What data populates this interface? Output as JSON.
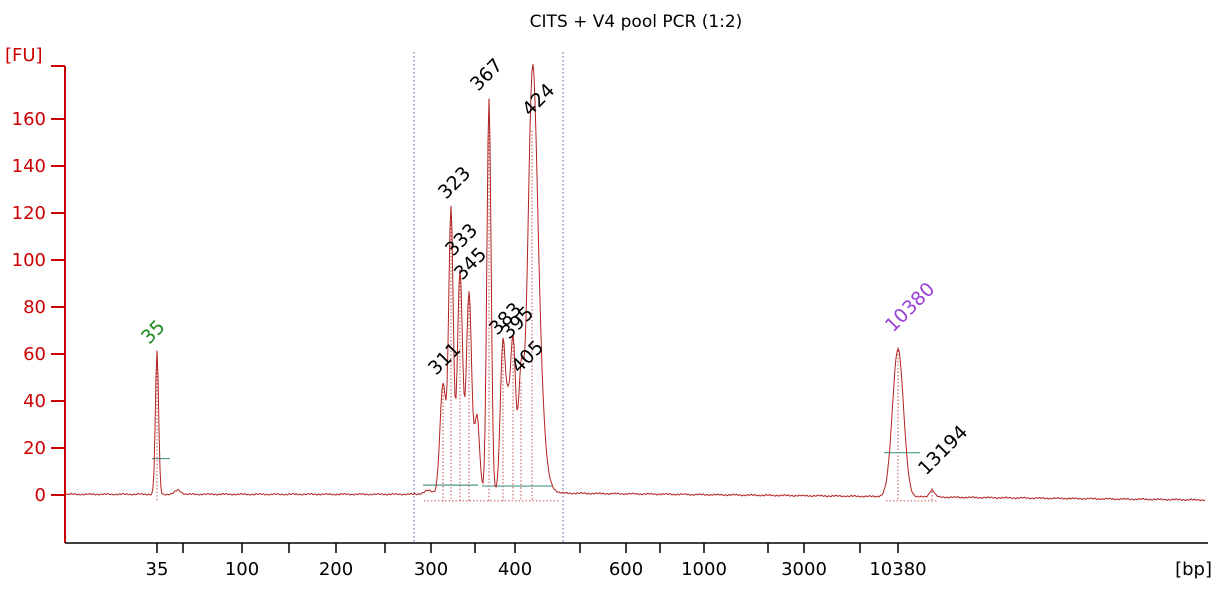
{
  "colors": {
    "axis": "#cc0000",
    "trace": "#b22222",
    "marker_line": "#5555bb",
    "baseline_segment": "#4a9a8a",
    "peak_label": "#000000",
    "lower_marker_label": "#1a8a1a",
    "upper_marker_label": "#9a40d8"
  },
  "chart_data": {
    "type": "line",
    "title": "CITS + V4 pool PCR (1:2)",
    "ylabel": "[FU]",
    "xlabel": "[bp]",
    "ylim": [
      -17,
      180
    ],
    "yticks": [
      0,
      20,
      40,
      60,
      80,
      100,
      120,
      140,
      160
    ],
    "xticks": [
      "35",
      "100",
      "200",
      "300",
      "400",
      "600",
      "1000",
      "3000",
      "10380"
    ],
    "grid": false,
    "region_bounds_bp": [
      280,
      470
    ],
    "peaks": [
      {
        "label": "35",
        "x": 35,
        "value": 61,
        "role": "lower marker"
      },
      {
        "label": "311",
        "x": 311,
        "value": 47
      },
      {
        "label": "323",
        "x": 323,
        "value": 121
      },
      {
        "label": "333",
        "x": 333,
        "value": 95
      },
      {
        "label": "345",
        "x": 345,
        "value": 86
      },
      {
        "label": "367",
        "x": 367,
        "value": 168
      },
      {
        "label": "383",
        "x": 383,
        "value": 65
      },
      {
        "label": "395",
        "x": 395,
        "value": 66
      },
      {
        "label": "405",
        "x": 405,
        "value": 48
      },
      {
        "label": "424",
        "x": 424,
        "value": 155
      },
      {
        "label": "10380",
        "x": 10380,
        "value": 63,
        "role": "upper marker"
      },
      {
        "label": "13194",
        "x": 13194,
        "value": 3
      }
    ]
  }
}
